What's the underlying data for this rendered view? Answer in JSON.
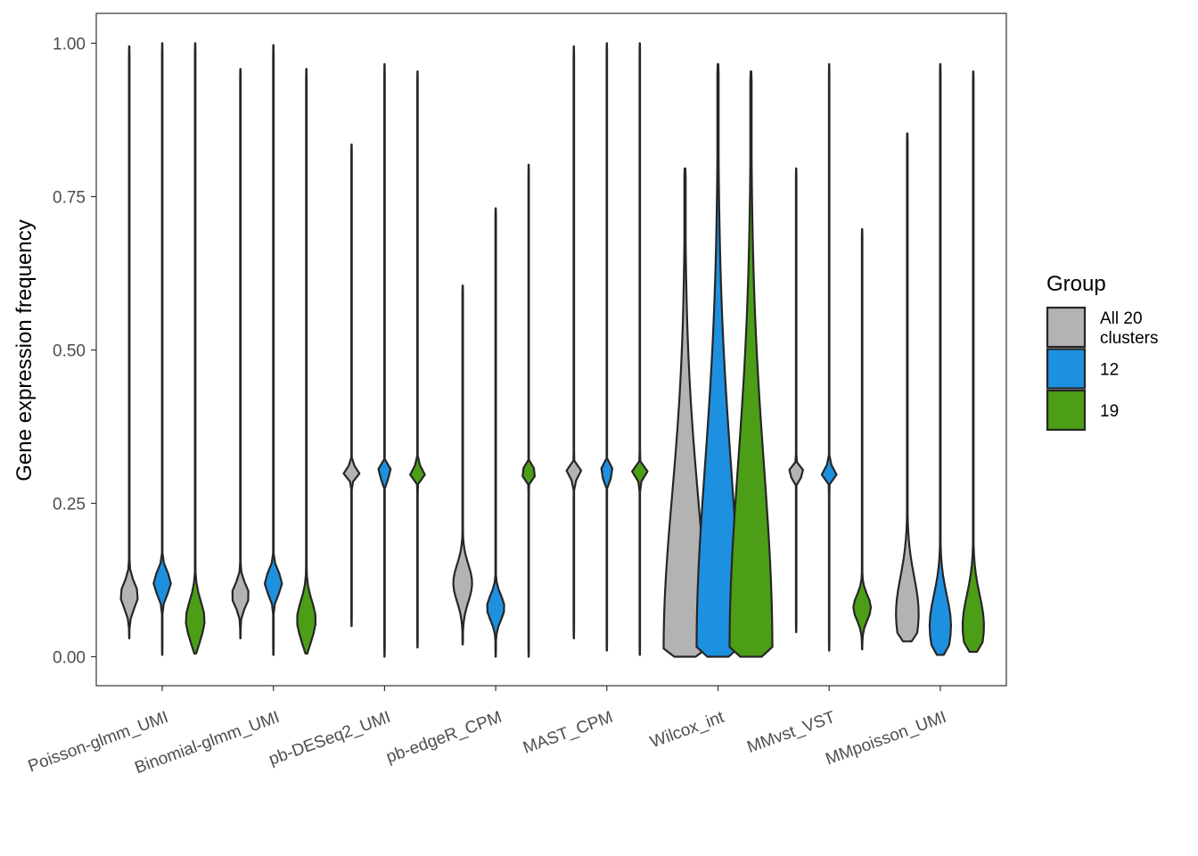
{
  "chart_data": {
    "type": "violin",
    "title": "",
    "xlabel": "",
    "ylabel": "Gene expression frequency",
    "ylim": [
      -0.05,
      1.05
    ],
    "yticks": [
      0.0,
      0.25,
      0.5,
      0.75,
      1.0
    ],
    "ytick_labels": [
      "0.00",
      "0.25",
      "0.50",
      "0.75",
      "1.00"
    ],
    "categories": [
      "Poisson-glmm_UMI",
      "Binomial-glmm_UMI",
      "pb-DESeq2_UMI",
      "pb-edgeR_CPM",
      "MAST_CPM",
      "Wilcox_int",
      "MMvst_VST",
      "MMpoisson_UMI"
    ],
    "legend": {
      "title": "Group",
      "position": "right",
      "entries": [
        {
          "label": "All 20 clusters",
          "lines": [
            "All 20",
            "clusters"
          ],
          "color": "#b3b3b3"
        },
        {
          "label": "12",
          "lines": [
            "12"
          ],
          "color": "#1e90e0"
        },
        {
          "label": "19",
          "lines": [
            "19"
          ],
          "color": "#4c9e17"
        }
      ]
    },
    "grid": false,
    "violins": [
      {
        "category": "Poisson-glmm_UMI",
        "group": "All 20 clusters",
        "min": 0.03,
        "max": 0.995,
        "bulge_center": 0.1,
        "bulge_width": 0.02
      },
      {
        "category": "Poisson-glmm_UMI",
        "group": "12",
        "min": 0.003,
        "max": 1.0,
        "bulge_center": 0.12,
        "bulge_width": 0.018
      },
      {
        "category": "Poisson-glmm_UMI",
        "group": "19",
        "min": 0.005,
        "max": 1.0,
        "bulge_center": 0.06,
        "bulge_width": 0.03
      },
      {
        "category": "Binomial-glmm_UMI",
        "group": "All 20 clusters",
        "min": 0.03,
        "max": 0.958,
        "bulge_center": 0.1,
        "bulge_width": 0.018
      },
      {
        "category": "Binomial-glmm_UMI",
        "group": "12",
        "min": 0.003,
        "max": 0.997,
        "bulge_center": 0.12,
        "bulge_width": 0.018
      },
      {
        "category": "Binomial-glmm_UMI",
        "group": "19",
        "min": 0.005,
        "max": 0.958,
        "bulge_center": 0.06,
        "bulge_width": 0.03
      },
      {
        "category": "pb-DESeq2_UMI",
        "group": "All 20 clusters",
        "min": 0.05,
        "max": 0.835,
        "bulge_center": 0.3,
        "bulge_width": 0.008
      },
      {
        "category": "pb-DESeq2_UMI",
        "group": "12",
        "min": 0.0,
        "max": 0.966,
        "bulge_center": 0.3,
        "bulge_width": 0.008
      },
      {
        "category": "pb-DESeq2_UMI",
        "group": "19",
        "min": 0.015,
        "max": 0.954,
        "bulge_center": 0.3,
        "bulge_width": 0.008
      },
      {
        "category": "pb-edgeR_CPM",
        "group": "All 20 clusters",
        "min": 0.02,
        "max": 0.605,
        "bulge_center": 0.12,
        "bulge_width": 0.03
      },
      {
        "category": "pb-edgeR_CPM",
        "group": "12",
        "min": 0.0,
        "max": 0.731,
        "bulge_center": 0.08,
        "bulge_width": 0.02
      },
      {
        "category": "pb-edgeR_CPM",
        "group": "19",
        "min": 0.0,
        "max": 0.802,
        "bulge_center": 0.3,
        "bulge_width": 0.008
      },
      {
        "category": "MAST_CPM",
        "group": "All 20 clusters",
        "min": 0.03,
        "max": 0.995,
        "bulge_center": 0.3,
        "bulge_width": 0.008
      },
      {
        "category": "MAST_CPM",
        "group": "12",
        "min": 0.01,
        "max": 1.0,
        "bulge_center": 0.3,
        "bulge_width": 0.008
      },
      {
        "category": "MAST_CPM",
        "group": "19",
        "min": 0.003,
        "max": 1.0,
        "bulge_center": 0.3,
        "bulge_width": 0.008
      },
      {
        "category": "Wilcox_int",
        "group": "All 20 clusters",
        "min": 0.0,
        "max": 0.796,
        "bulge_center": 0.012,
        "bulge_width": 0.25
      },
      {
        "category": "Wilcox_int",
        "group": "12",
        "min": 0.0,
        "max": 0.966,
        "bulge_center": 0.012,
        "bulge_width": 0.3
      },
      {
        "category": "Wilcox_int",
        "group": "19",
        "min": 0.0,
        "max": 0.954,
        "bulge_center": 0.012,
        "bulge_width": 0.3
      },
      {
        "category": "MMvst_VST",
        "group": "All 20 clusters",
        "min": 0.04,
        "max": 0.796,
        "bulge_center": 0.3,
        "bulge_width": 0.008
      },
      {
        "category": "MMvst_VST",
        "group": "12",
        "min": 0.01,
        "max": 0.966,
        "bulge_center": 0.3,
        "bulge_width": 0.008
      },
      {
        "category": "MMvst_VST",
        "group": "19",
        "min": 0.012,
        "max": 0.697,
        "bulge_center": 0.08,
        "bulge_width": 0.02
      },
      {
        "category": "MMpoisson_UMI",
        "group": "All 20 clusters",
        "min": 0.025,
        "max": 0.853,
        "bulge_center": 0.07,
        "bulge_width": 0.06
      },
      {
        "category": "MMpoisson_UMI",
        "group": "12",
        "min": 0.003,
        "max": 0.966,
        "bulge_center": 0.05,
        "bulge_width": 0.05
      },
      {
        "category": "MMpoisson_UMI",
        "group": "19",
        "min": 0.008,
        "max": 0.954,
        "bulge_center": 0.05,
        "bulge_width": 0.05
      }
    ]
  }
}
